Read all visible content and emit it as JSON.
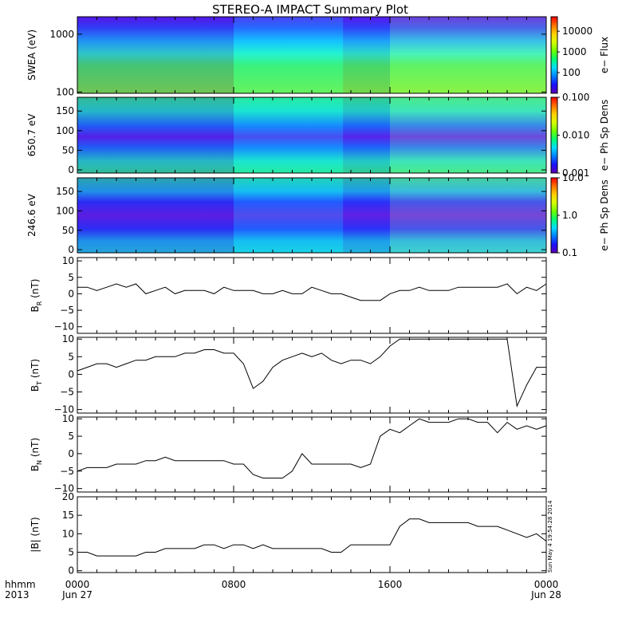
{
  "title": "STEREO-A IMPACT Summary Plot",
  "stamp": "Sun May  4 19:54:28 2014",
  "time_axis": {
    "corner_top": "hhmm",
    "corner_bottom": "2013",
    "ticks": [
      {
        "hour": 0,
        "label": "0000",
        "sublabel": "Jun 27"
      },
      {
        "hour": 8,
        "label": "0800",
        "sublabel": ""
      },
      {
        "hour": 16,
        "label": "1600",
        "sublabel": ""
      },
      {
        "hour": 24,
        "label": "0000",
        "sublabel": "Jun 28"
      }
    ],
    "range_hours": [
      0,
      24
    ]
  },
  "panels": [
    {
      "id": "swea",
      "type": "heatmap",
      "ylabel": "SWEA (eV)",
      "y_scale": "log",
      "yrange": [
        95,
        2000
      ],
      "yticks": [
        {
          "v": 100,
          "label": "100"
        },
        {
          "v": 1000,
          "label": "1000"
        }
      ],
      "colorbar": {
        "label": "e− Flux",
        "scale": "log",
        "range": [
          10,
          50000
        ],
        "ticks": [
          {
            "v": 100,
            "label": "100"
          },
          {
            "v": 1000,
            "label": "1000"
          },
          {
            "v": 10000,
            "label": "10000"
          }
        ]
      }
    },
    {
      "id": "pad650",
      "type": "heatmap",
      "ylabel": "650.7 eV",
      "y_scale": "linear",
      "yrange": [
        -8,
        185
      ],
      "yticks": [
        {
          "v": 0,
          "label": "0"
        },
        {
          "v": 50,
          "label": "50"
        },
        {
          "v": 100,
          "label": "100"
        },
        {
          "v": 150,
          "label": "150"
        }
      ],
      "colorbar": {
        "label": "e− Ph Sp Dens",
        "scale": "log",
        "range": [
          0.001,
          0.1
        ],
        "ticks": [
          {
            "v": 0.001,
            "label": "0.001"
          },
          {
            "v": 0.01,
            "label": "0.010"
          },
          {
            "v": 0.1,
            "label": "0.100"
          }
        ]
      }
    },
    {
      "id": "pad246",
      "type": "heatmap",
      "ylabel": "246.6 eV",
      "y_scale": "linear",
      "yrange": [
        -8,
        185
      ],
      "yticks": [
        {
          "v": 0,
          "label": "0"
        },
        {
          "v": 50,
          "label": "50"
        },
        {
          "v": 100,
          "label": "100"
        },
        {
          "v": 150,
          "label": "150"
        }
      ],
      "colorbar": {
        "label": "e− Ph Sp Dens",
        "scale": "log",
        "range": [
          0.1,
          10
        ],
        "ticks": [
          {
            "v": 0.1,
            "label": "0.1"
          },
          {
            "v": 1,
            "label": "1.0"
          },
          {
            "v": 10,
            "label": "10.0"
          }
        ]
      }
    },
    {
      "id": "br",
      "type": "line",
      "ylabel_main": "B",
      "ylabel_sub": "R",
      "ylabel_unit": " (nT)",
      "yrange": [
        -12,
        11
      ],
      "yticks": [
        {
          "v": -10,
          "label": "−10"
        },
        {
          "v": -5,
          "label": "−5"
        },
        {
          "v": 0,
          "label": "0"
        },
        {
          "v": 5,
          "label": "5"
        },
        {
          "v": 10,
          "label": "10"
        }
      ]
    },
    {
      "id": "bt",
      "type": "line",
      "ylabel_main": "B",
      "ylabel_sub": "T",
      "ylabel_unit": " (nT)",
      "yrange": [
        -11,
        10.5
      ],
      "yticks": [
        {
          "v": -10,
          "label": "−10"
        },
        {
          "v": -5,
          "label": "−5"
        },
        {
          "v": 0,
          "label": "0"
        },
        {
          "v": 5,
          "label": "5"
        },
        {
          "v": 10,
          "label": "10"
        }
      ]
    },
    {
      "id": "bn",
      "type": "line",
      "ylabel_main": "B",
      "ylabel_sub": "N",
      "ylabel_unit": " (nT)",
      "yrange": [
        -11,
        10.5
      ],
      "yticks": [
        {
          "v": -10,
          "label": "−10"
        },
        {
          "v": -5,
          "label": "−5"
        },
        {
          "v": 0,
          "label": "0"
        },
        {
          "v": 5,
          "label": "5"
        },
        {
          "v": 10,
          "label": "10"
        }
      ]
    },
    {
      "id": "bmag",
      "type": "line",
      "ylabel_main": "|B| (nT)",
      "yrange": [
        -0.5,
        20
      ],
      "yticks": [
        {
          "v": 0,
          "label": "0"
        },
        {
          "v": 5,
          "label": "5"
        },
        {
          "v": 10,
          "label": "10"
        },
        {
          "v": 15,
          "label": "15"
        },
        {
          "v": 20,
          "label": "20"
        }
      ]
    }
  ],
  "chart_data": {
    "type": "line",
    "x_unit": "hours from 2013 Jun 27 00:00",
    "x": [
      0,
      0.5,
      1,
      1.5,
      2,
      2.5,
      3,
      3.5,
      4,
      4.5,
      5,
      5.5,
      6,
      6.5,
      7,
      7.5,
      8,
      8.5,
      9,
      9.5,
      10,
      10.5,
      11,
      11.5,
      12,
      12.5,
      13,
      13.5,
      14,
      14.5,
      15,
      15.5,
      16,
      16.5,
      17,
      17.5,
      18,
      18.5,
      19,
      19.5,
      20,
      20.5,
      21,
      21.5,
      22,
      22.5,
      23,
      23.5,
      24
    ],
    "series": [
      {
        "name": "B_R",
        "values": [
          2,
          2,
          1,
          2,
          3,
          2,
          3,
          0,
          1,
          2,
          0,
          1,
          1,
          1,
          0,
          2,
          1,
          1,
          1,
          0,
          0,
          1,
          0,
          0,
          2,
          1,
          0,
          0,
          -1,
          -2,
          -2,
          -2,
          0,
          1,
          1,
          2,
          1,
          1,
          1,
          2,
          2,
          2,
          2,
          2,
          3,
          0,
          2,
          1,
          3
        ]
      },
      {
        "name": "B_T",
        "values": [
          1,
          2,
          3,
          3,
          2,
          3,
          4,
          4,
          5,
          5,
          5,
          6,
          6,
          7,
          7,
          6,
          6,
          3,
          -4,
          -2,
          2,
          4,
          5,
          6,
          5,
          6,
          4,
          3,
          4,
          4,
          3,
          5,
          8,
          10,
          10,
          10,
          10,
          10,
          10,
          10,
          10,
          10,
          10,
          10,
          10,
          -9,
          -3,
          2,
          2
        ]
      },
      {
        "name": "B_N",
        "values": [
          -5,
          -4,
          -4,
          -4,
          -3,
          -3,
          -3,
          -2,
          -2,
          -1,
          -2,
          -2,
          -2,
          -2,
          -2,
          -2,
          -3,
          -3,
          -6,
          -7,
          -7,
          -7,
          -5,
          0,
          -3,
          -3,
          -3,
          -3,
          -3,
          -4,
          -3,
          5,
          7,
          6,
          8,
          10,
          9,
          9,
          9,
          10,
          10,
          9,
          9,
          6,
          9,
          7,
          8,
          7,
          8
        ]
      },
      {
        "name": "|B|",
        "values": [
          5,
          5,
          4,
          4,
          4,
          4,
          4,
          5,
          5,
          6,
          6,
          6,
          6,
          7,
          7,
          6,
          7,
          7,
          6,
          7,
          6,
          6,
          6,
          6,
          6,
          6,
          5,
          5,
          7,
          7,
          7,
          7,
          7,
          12,
          14,
          14,
          13,
          13,
          13,
          13,
          13,
          12,
          12,
          12,
          11,
          10,
          9,
          10,
          8
        ]
      }
    ]
  },
  "colors": {
    "line": "#000000",
    "axis": "#000000",
    "background": "#ffffff"
  }
}
